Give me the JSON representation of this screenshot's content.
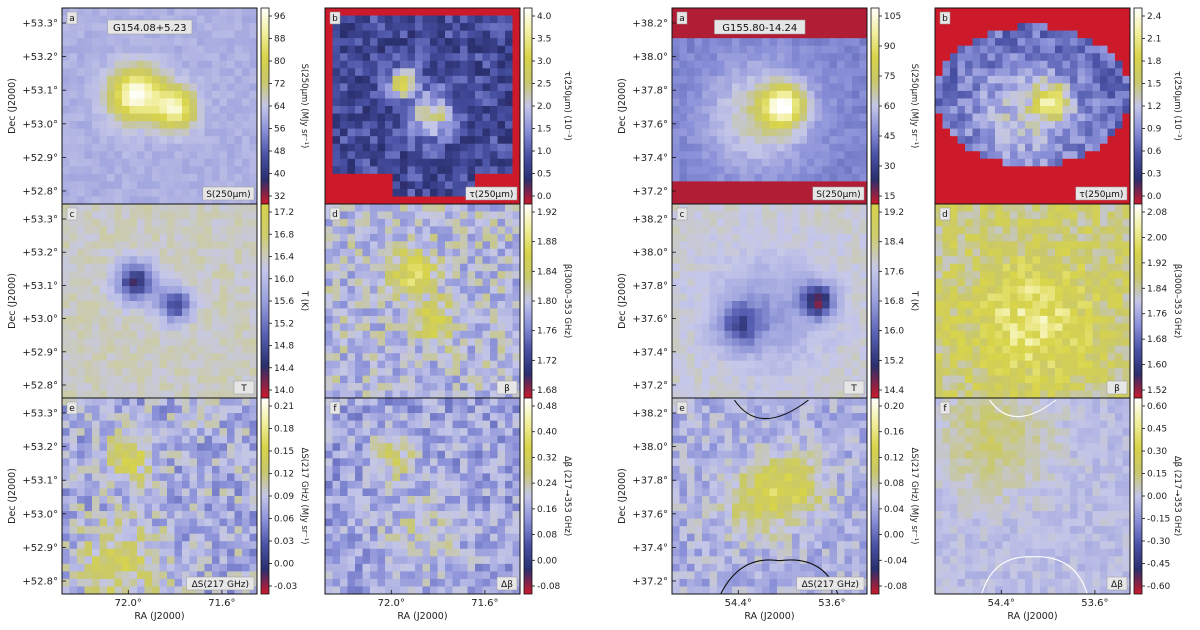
{
  "figure": {
    "groups": [
      {
        "field_name": "G154.08+5.23",
        "dec_ticks": [
          "+53.3°",
          "+53.2°",
          "+53.1°",
          "+53.0°",
          "+52.9°",
          "+52.8°"
        ],
        "ra_ticks_left": [
          "72.0°",
          "71.6°"
        ],
        "ra_ticks_right": [
          "72.0°",
          "71.6°"
        ],
        "ylabel": "Dec (J2000)",
        "xlabel": "RA (J2000)",
        "panels": [
          {
            "letter": "a",
            "label": "S(250μm)",
            "cbar_label": "S(250μm) (MJy sr⁻¹)",
            "cmap": "cmapA",
            "cbar_ticks": [
              "96",
              "88",
              "80",
              "72",
              "64",
              "56",
              "48",
              "40",
              "32"
            ],
            "hot": [
              [
                0.38,
                0.44,
                0.09,
                1.0
              ],
              [
                0.58,
                0.51,
                0.07,
                0.85
              ]
            ],
            "base": 0.45,
            "noise": 0.05,
            "seed": 3
          },
          {
            "letter": "b",
            "label": "τ(250μm)",
            "cbar_label": "τ(250μm) (10⁻³)",
            "cmap": "cmapA",
            "cbar_ticks": [
              "4.0",
              "3.5",
              "3.0",
              "2.5",
              "2.0",
              "1.5",
              "1.0",
              "0.5",
              "0.0"
            ],
            "hot": [
              [
                0.4,
                0.38,
                0.05,
                1.0
              ],
              [
                0.55,
                0.55,
                0.08,
                0.7
              ]
            ],
            "base": 0.22,
            "noise": 0.2,
            "seed": 7,
            "rededge": 1
          },
          {
            "letter": "c",
            "label": "T",
            "cbar_label": "T (K)",
            "cmap": "cmapT",
            "cbar_ticks": [
              "17.2",
              "16.8",
              "16.4",
              "16.0",
              "15.6",
              "15.2",
              "14.8",
              "14.4",
              "14.0"
            ],
            "hot": [
              [
                0.38,
                0.4,
                0.07,
                -1.0
              ],
              [
                0.58,
                0.52,
                0.06,
                -0.85
              ]
            ],
            "base": 0.72,
            "noise": 0.08,
            "seed": 11
          },
          {
            "letter": "d",
            "label": "β",
            "cbar_label": "β(3000–353 GHz)",
            "cmap": "cmapA",
            "cbar_ticks": [
              "1.92",
              "1.88",
              "1.84",
              "1.80",
              "1.76",
              "1.72",
              "1.68"
            ],
            "hot": [
              [
                0.45,
                0.35,
                0.08,
                0.55
              ],
              [
                0.55,
                0.6,
                0.07,
                0.45
              ]
            ],
            "base": 0.48,
            "noise": 0.22,
            "seed": 19
          },
          {
            "letter": "e",
            "label": "ΔS(217 GHz)",
            "cbar_label": "ΔS(217 GHz) (MJy sr⁻¹)",
            "cmap": "cmapA",
            "cbar_ticks": [
              "0.21",
              "0.18",
              "0.15",
              "0.12",
              "0.09",
              "0.06",
              "0.03",
              "0.00",
              "-0.03"
            ],
            "hot": [
              [
                0.35,
                0.3,
                0.08,
                0.5
              ],
              [
                0.3,
                0.85,
                0.15,
                0.35
              ]
            ],
            "base": 0.45,
            "noise": 0.24,
            "seed": 23
          },
          {
            "letter": "f",
            "label": "Δβ",
            "cbar_label": "Δβ (217→353 GHz)",
            "cmap": "cmapA",
            "cbar_ticks": [
              "0.48",
              "0.40",
              "0.32",
              "0.24",
              "0.16",
              "0.08",
              "0.00",
              "-0.08"
            ],
            "hot": [
              [
                0.35,
                0.3,
                0.08,
                0.35
              ],
              [
                0.5,
                0.7,
                0.15,
                0.2
              ]
            ],
            "base": 0.42,
            "noise": 0.2,
            "seed": 29
          }
        ]
      },
      {
        "field_name": "G155.80-14.24",
        "dec_ticks": [
          "+38.2°",
          "+38.0°",
          "+37.8°",
          "+37.6°",
          "+37.4°",
          "+37.2°"
        ],
        "ra_ticks_left": [
          "54.4°",
          "53.6°"
        ],
        "ra_ticks_right": [
          "54.4°",
          "53.6°"
        ],
        "ylabel": "Dec (J2000)",
        "xlabel": "RA (J2000)",
        "panels": [
          {
            "letter": "a",
            "label": "S(250μm)",
            "cbar_label": "S(250μm) (MJy sr⁻¹)",
            "cmap": "cmapA",
            "cbar_ticks": [
              "105",
              "90",
              "75",
              "60",
              "45",
              "30",
              "15"
            ],
            "hot": [
              [
                0.57,
                0.5,
                0.07,
                1.0
              ],
              [
                0.45,
                0.55,
                0.18,
                0.4
              ]
            ],
            "base": 0.35,
            "noise": 0.06,
            "seed": 31,
            "redtop": 1
          },
          {
            "letter": "b",
            "label": "τ(250μm)",
            "cbar_label": "τ(250μm) (10⁻³)",
            "cmap": "cmapA",
            "cbar_ticks": [
              "2.4",
              "2.1",
              "1.8",
              "1.5",
              "1.2",
              "0.9",
              "0.6",
              "0.3",
              "0.0"
            ],
            "hot": [
              [
                0.6,
                0.48,
                0.06,
                0.85
              ],
              [
                0.45,
                0.55,
                0.2,
                0.35
              ]
            ],
            "base": 0.3,
            "noise": 0.18,
            "seed": 37,
            "redellipse": 1
          },
          {
            "letter": "c",
            "label": "T",
            "cbar_label": "T (K)",
            "cmap": "cmapT",
            "cbar_ticks": [
              "19.2",
              "18.4",
              "17.6",
              "16.8",
              "16.0",
              "15.2",
              "14.4"
            ],
            "hot": [
              [
                0.75,
                0.5,
                0.06,
                -1.0
              ],
              [
                0.35,
                0.62,
                0.08,
                -0.6
              ],
              [
                0.5,
                0.55,
                0.2,
                -0.35
              ]
            ],
            "base": 0.7,
            "noise": 0.08,
            "seed": 41
          },
          {
            "letter": "d",
            "label": "β",
            "cbar_label": "β(3000–353 GHz)",
            "cmap": "cmapA",
            "cbar_ticks": [
              "2.08",
              "2.00",
              "1.92",
              "1.84",
              "1.76",
              "1.68",
              "1.60",
              "1.52"
            ],
            "hot": [
              [
                0.5,
                0.6,
                0.2,
                0.4
              ]
            ],
            "base": 0.62,
            "noise": 0.2,
            "seed": 43
          },
          {
            "letter": "e",
            "label": "ΔS(217 GHz)",
            "cbar_label": "ΔS(217 GHz) (MJy sr⁻¹)",
            "cmap": "cmapA",
            "cbar_ticks": [
              "0.20",
              "0.16",
              "0.12",
              "0.08",
              "0.04",
              "0.00",
              "-0.04",
              "-0.08"
            ],
            "hot": [
              [
                0.6,
                0.45,
                0.12,
                0.5
              ],
              [
                0.4,
                0.55,
                0.12,
                0.3
              ]
            ],
            "base": 0.45,
            "noise": 0.16,
            "seed": 47,
            "contour": 1
          },
          {
            "letter": "f",
            "label": "Δβ",
            "cbar_label": "Δβ (217→353 GHz)",
            "cmap": "cmapA",
            "cbar_ticks": [
              "0.60",
              "0.45",
              "0.30",
              "0.15",
              "0.00",
              "-0.15",
              "-0.30",
              "-0.45",
              "-0.60"
            ],
            "hot": [
              [
                0.3,
                0.2,
                0.2,
                0.25
              ]
            ],
            "base": 0.48,
            "noise": 0.08,
            "seed": 53,
            "contour": 2
          }
        ]
      }
    ]
  },
  "colormaps": {
    "cmapA": [
      "#cc1a2b",
      "#2a2f6e",
      "#4a52a6",
      "#8a90d8",
      "#c4c6e8",
      "#c9c86a",
      "#d8d44a",
      "#f2f0a0",
      "#ffffff"
    ],
    "cmapT": [
      "#cc1a2b",
      "#2a2f6e",
      "#5a62b6",
      "#9aa0dc",
      "#c6c8ea",
      "#cfcd6e",
      "#d6d24a"
    ]
  },
  "chart_data": {
    "type": "heatmap",
    "fields": [
      "G154.08+5.23",
      "G155.80-14.24"
    ],
    "panels": [
      "a",
      "b",
      "c",
      "d",
      "e",
      "f"
    ],
    "panel_quantities": [
      "S(250μm)",
      "τ(250μm)",
      "T",
      "β",
      "ΔS(217 GHz)",
      "Δβ"
    ],
    "xlabel": "RA (J2000)",
    "ylabel": "Dec (J2000)"
  }
}
